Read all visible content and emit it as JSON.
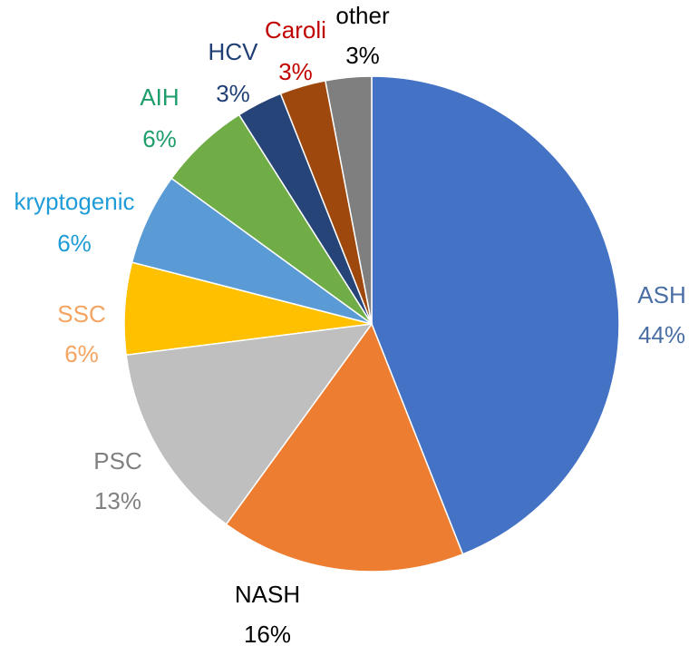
{
  "chart_data": {
    "type": "pie",
    "title": "",
    "slices": [
      {
        "name": "ASH",
        "value": 44,
        "percent_label": "44%",
        "color": "#4472C4",
        "label_color": "#4A6FA5"
      },
      {
        "name": "NASH",
        "value": 16,
        "percent_label": "16%",
        "color": "#ED7D31",
        "label_color": "#000000"
      },
      {
        "name": "PSC",
        "value": 13,
        "percent_label": "13%",
        "color": "#BFBFBF",
        "label_color": "#808080"
      },
      {
        "name": "SSC",
        "value": 6,
        "percent_label": "6%",
        "color": "#FFC000",
        "label_color": "#F4A460"
      },
      {
        "name": "kryptogenic",
        "value": 6,
        "percent_label": "6%",
        "color": "#5B9BD5",
        "label_color": "#1E9CD7"
      },
      {
        "name": "AIH",
        "value": 6,
        "percent_label": "6%",
        "color": "#70AD47",
        "label_color": "#1E9E6B"
      },
      {
        "name": "HCV",
        "value": 3,
        "percent_label": "3%",
        "color": "#264478",
        "label_color": "#1F3F75"
      },
      {
        "name": "Caroli",
        "value": 3,
        "percent_label": "3%",
        "color": "#9E480E",
        "label_color": "#C00000"
      },
      {
        "name": "other",
        "value": 3,
        "percent_label": "3%",
        "color": "#7F7F7F",
        "label_color": "#000000"
      }
    ],
    "legend": "none",
    "start": "12 o'clock, clockwise"
  }
}
